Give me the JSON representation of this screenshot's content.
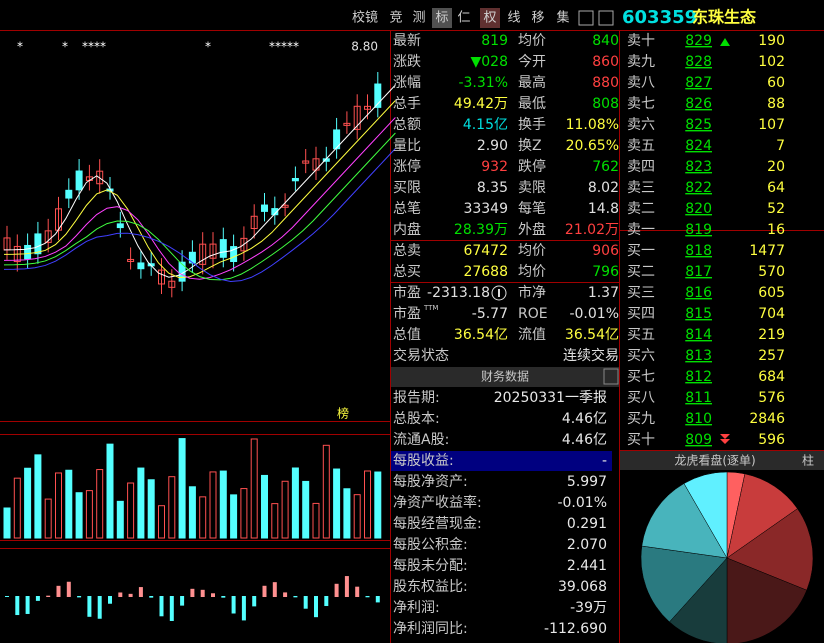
{
  "toolbar": [
    "校镜",
    "竞",
    "测",
    "标",
    "仁",
    "权",
    "线",
    "移",
    "集"
  ],
  "header": {
    "code": "603359",
    "name": "东珠生态"
  },
  "chart": {
    "price_label": "8.80",
    "markers": [
      "*",
      "*",
      "****",
      "*",
      "*****"
    ],
    "rank_label": "榜"
  },
  "quote": {
    "rows": [
      {
        "label": "最新",
        "value": "819",
        "label2": "均价",
        "value2": "840"
      },
      {
        "label": "涨跌",
        "value": "▼028",
        "label2": "今开",
        "value2": "860"
      },
      {
        "label": "涨幅",
        "value": "-3.31%",
        "label2": "最高",
        "value2": "880"
      },
      {
        "label": "总手",
        "value": "49.42万",
        "label2": "最低",
        "value2": "808"
      },
      {
        "label": "总额",
        "value": "4.15亿",
        "label2": "换手",
        "value2": "11.08%"
      },
      {
        "label": "量比",
        "value": "2.90",
        "label2": "换Z",
        "value2": "20.65%"
      },
      {
        "label": "涨停",
        "value": "932",
        "label2": "跌停",
        "value2": "762"
      },
      {
        "label": "买限",
        "value": "8.35",
        "label2": "卖限",
        "value2": "8.02"
      },
      {
        "label": "总笔",
        "value": "33349",
        "label2": "每笔",
        "value2": "14.8"
      },
      {
        "label": "内盘",
        "value": "28.39万",
        "label2": "外盘",
        "value2": "21.02万"
      },
      {
        "label": "总卖",
        "value": "67472",
        "label2": "均价",
        "value2": "906"
      },
      {
        "label": "总买",
        "value": "27688",
        "label2": "均价",
        "value2": "796"
      },
      {
        "label": "市盈",
        "value": "-2313.18",
        "label2": "市净",
        "value2": "1.37"
      },
      {
        "label": "市盈",
        "sup": "TTM",
        "value": "-5.77",
        "label2": "ROE",
        "value2": "-0.01%"
      },
      {
        "label": "总值",
        "value": "36.54亿",
        "label2": "流值",
        "value2": "36.54亿"
      },
      {
        "label": "交易状态",
        "value2": "连续交易"
      }
    ]
  },
  "finance": {
    "title": "财务数据",
    "rows": [
      [
        "报告期:",
        "20250331一季报"
      ],
      [
        "总股本:",
        "4.46亿"
      ],
      [
        "流通A股:",
        "4.46亿"
      ],
      [
        "每股收益:",
        "-"
      ],
      [
        "每股净资产:",
        "5.997"
      ],
      [
        "净资产收益率:",
        "-0.01%"
      ],
      [
        "每股经营现金:",
        "0.291"
      ],
      [
        "每股公积金:",
        "2.070"
      ],
      [
        "每股未分配:",
        "2.441"
      ],
      [
        "股东权益比:",
        "39.068"
      ],
      [
        "净利润:",
        "-39万"
      ],
      [
        "净利润同比:",
        "-112.690"
      ]
    ]
  },
  "orderbook": {
    "rows": [
      [
        "卖十",
        "829",
        "190"
      ],
      [
        "卖九",
        "828",
        "102"
      ],
      [
        "卖八",
        "827",
        "60"
      ],
      [
        "卖七",
        "826",
        "88"
      ],
      [
        "卖六",
        "825",
        "107"
      ],
      [
        "卖五",
        "824",
        "7"
      ],
      [
        "卖四",
        "823",
        "20"
      ],
      [
        "卖三",
        "822",
        "64"
      ],
      [
        "卖二",
        "820",
        "52"
      ],
      [
        "卖一",
        "819",
        "16"
      ],
      [
        "买一",
        "818",
        "1477"
      ],
      [
        "买二",
        "817",
        "570"
      ],
      [
        "买三",
        "816",
        "605"
      ],
      [
        "买四",
        "815",
        "704"
      ],
      [
        "买五",
        "814",
        "219"
      ],
      [
        "买六",
        "813",
        "257"
      ],
      [
        "买七",
        "812",
        "684"
      ],
      [
        "买八",
        "811",
        "576"
      ],
      [
        "买九",
        "810",
        "2846"
      ],
      [
        "买十",
        "809",
        "596"
      ]
    ]
  },
  "panel": {
    "title": "龙虎看盘(逐单)",
    "button": "柱"
  }
}
